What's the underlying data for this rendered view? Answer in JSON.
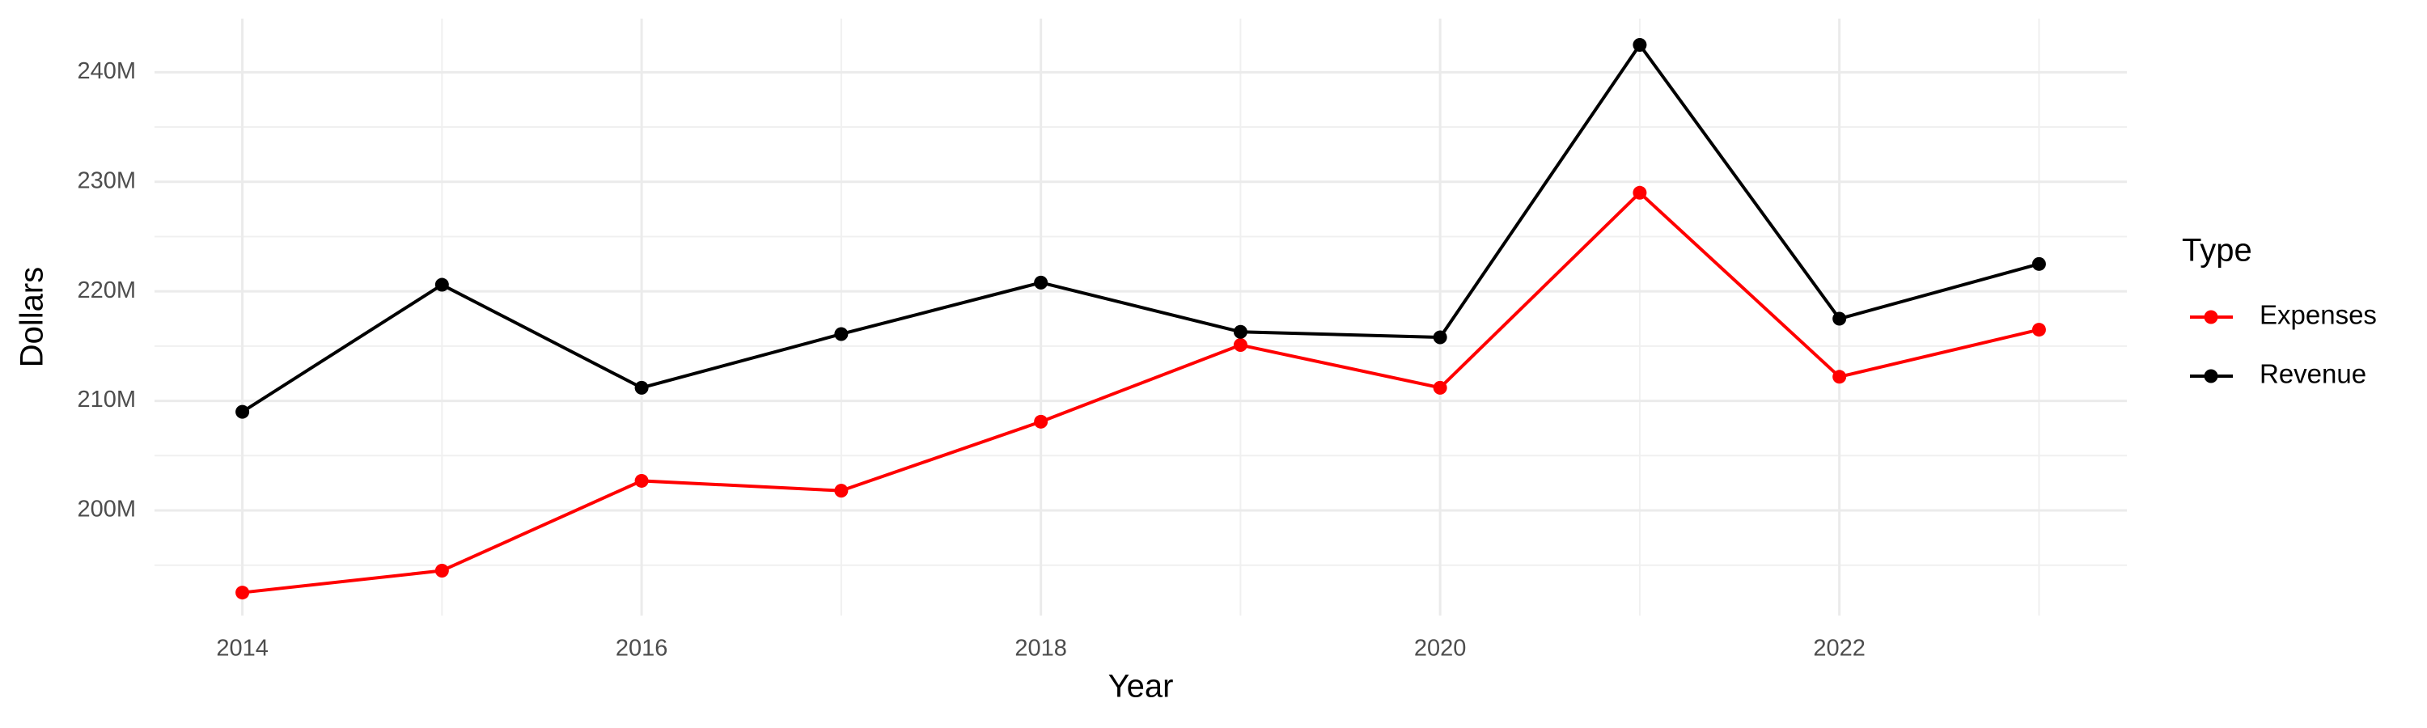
{
  "chart_data": {
    "type": "line",
    "x_label": "Year",
    "y_label": "Dollars",
    "x": [
      2014,
      2015,
      2016,
      2017,
      2018,
      2019,
      2020,
      2021,
      2022,
      2023
    ],
    "series": [
      {
        "name": "Expenses",
        "color": "#ff0000",
        "values": [
          192500000,
          194500000,
          202700000,
          201800000,
          208100000,
          215100000,
          211200000,
          229000000,
          212200000,
          216500000
        ]
      },
      {
        "name": "Revenue",
        "color": "#000000",
        "values": [
          209000000,
          220600000,
          211200000,
          216100000,
          220800000,
          216300000,
          215800000,
          242500000,
          217500000,
          222500000
        ]
      }
    ],
    "xlim": [
      2013.56,
      2023.44
    ],
    "xticks": [
      2014,
      2016,
      2018,
      2020,
      2022
    ],
    "ylim": [
      190400000,
      244900000
    ],
    "yticks": [
      {
        "value": 200000000,
        "label": "200M"
      },
      {
        "value": 210000000,
        "label": "210M"
      },
      {
        "value": 220000000,
        "label": "220M"
      },
      {
        "value": 230000000,
        "label": "230M"
      },
      {
        "value": 240000000,
        "label": "240M"
      }
    ],
    "grid": true,
    "legend_title": "Type",
    "legend_position": "right"
  }
}
